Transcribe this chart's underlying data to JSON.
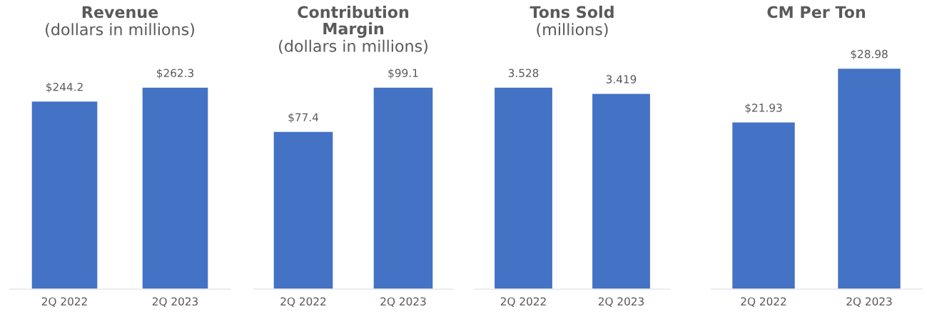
{
  "chart_data": [
    {
      "type": "bar",
      "title": "Revenue",
      "subtitle": "(dollars in millions)",
      "categories": [
        "2Q 2022",
        "2Q 2023"
      ],
      "values": [
        244.2,
        262.3
      ],
      "color": "#4472c4",
      "value_labels": [
        "$244.2",
        "$262.3"
      ]
    },
    {
      "type": "bar",
      "title": "Contribution\nMargin",
      "subtitle": "(dollars in millions)",
      "categories": [
        "2Q 2022",
        "2Q 2023"
      ],
      "values": [
        77.4,
        99.1
      ],
      "color": "#4472c4",
      "value_labels": [
        "$77.4",
        "$99.1"
      ]
    },
    {
      "type": "bar",
      "title": "Tons Sold",
      "subtitle": "(millions)",
      "categories": [
        "2Q 2022",
        "2Q 2023"
      ],
      "values": [
        3.528,
        3.419
      ],
      "color": "#4472c4",
      "data_labels": true
    },
    {
      "type": "bar",
      "title": "CM Per Ton",
      "categories": [
        "2Q 2022",
        "2Q 2023"
      ],
      "values": [
        21.93,
        28.98
      ],
      "color": "#4472c4",
      "value_labels": [
        "$21.93",
        "$28.98"
      ]
    }
  ]
}
